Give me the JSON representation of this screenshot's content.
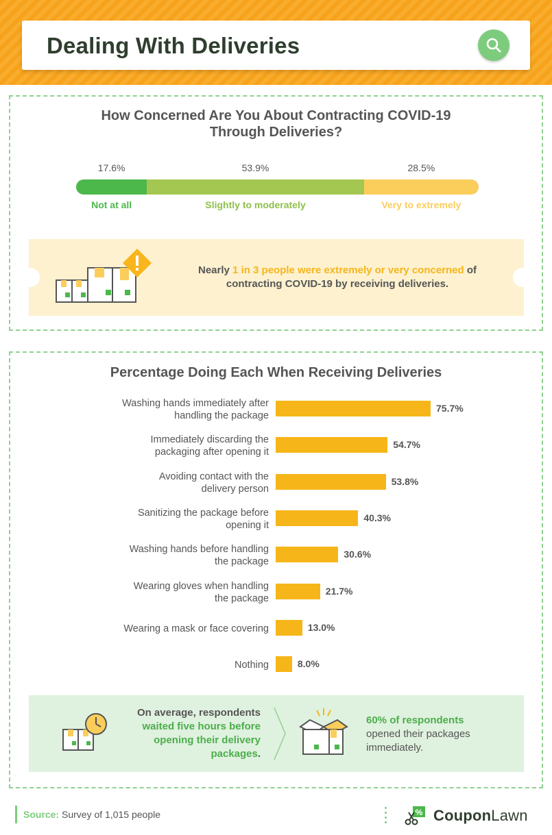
{
  "header": {
    "title": "Dealing With Deliveries"
  },
  "section1": {
    "title_line1": "How Concerned Are You About Contracting COVID-19",
    "title_line2": "Through Deliveries?",
    "callout": {
      "prefix": "Nearly ",
      "highlight": "1 in 3 people were extremely or very concerned",
      "suffix_line1": " of",
      "line2": "contracting COVID-19 by receiving deliveries."
    }
  },
  "section2": {
    "title": "Percentage Doing Each When Receiving Deliveries",
    "callout_left": {
      "line1": "On average, respondents",
      "hl1": "waited five hours before",
      "hl2": "opening their delivery",
      "hl3": "packages",
      "end": "."
    },
    "callout_right": {
      "hl": "60% of respondents",
      "line2": "opened their packages",
      "line3": "immediately."
    }
  },
  "footer": {
    "source_label": "Source:",
    "source_text": " Survey of 1,015 people",
    "brand_a": "Coupon",
    "brand_b": "Lawn"
  },
  "colors": {
    "green": "#4cb84c",
    "light_green": "#a4c751",
    "yellow": "#fbcd5a",
    "bar": "#f6b619",
    "accent_green": "#7dcc7d"
  },
  "chart_data": [
    {
      "type": "bar",
      "orientation": "stacked-horizontal",
      "categories": [
        "Not at all",
        "Slightly to moderately",
        "Very to extremely"
      ],
      "values": [
        17.6,
        53.9,
        28.5
      ],
      "value_labels": [
        "17.6%",
        "53.9%",
        "28.5%"
      ],
      "title": "How Concerned Are You About Contracting COVID-19 Through Deliveries?"
    },
    {
      "type": "bar",
      "orientation": "horizontal",
      "title": "Percentage Doing Each When Receiving Deliveries",
      "categories": [
        [
          "Washing hands immediately after",
          "handling the package"
        ],
        [
          "Immediately discarding the",
          "packaging after opening it"
        ],
        [
          "Avoiding contact with the",
          "delivery person"
        ],
        [
          "Sanitizing the package before",
          "opening it"
        ],
        [
          "Washing hands before handling",
          "the package"
        ],
        [
          "Wearing gloves when handling",
          "the package"
        ],
        [
          "Wearing a mask or face covering"
        ],
        [
          "Nothing"
        ]
      ],
      "values": [
        75.7,
        54.7,
        53.8,
        40.3,
        30.6,
        21.7,
        13.0,
        8.0
      ],
      "value_labels": [
        "75.7%",
        "54.7%",
        "53.8%",
        "40.3%",
        "30.6%",
        "21.7%",
        "13.0%",
        "8.0%"
      ]
    }
  ]
}
